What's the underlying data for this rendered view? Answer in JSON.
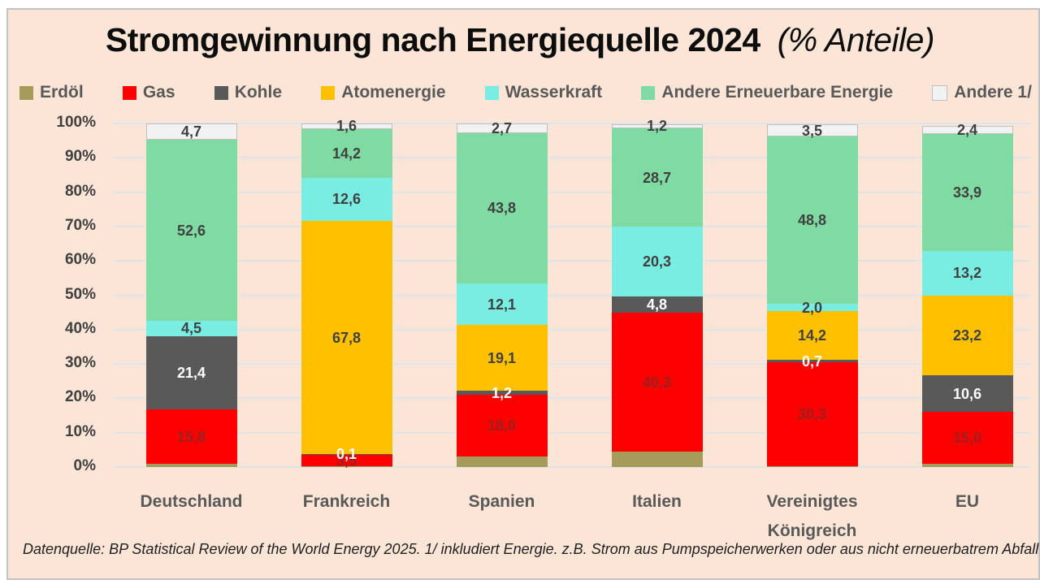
{
  "title": {
    "main": "Stromgewinnung nach Energiequelle 2024",
    "suffix": "(% Anteile)"
  },
  "footer": "Datenquelle: BP Statistical Review of the World Energy 2025. 1/ inkludiert Energie. z.B. Strom aus Pumpspeicherwerken oder aus nicht erneuerbatrem Abfall",
  "colors": {
    "panel_background": "#FBE5D6",
    "panel_border": "#C2C2C2",
    "gridline": "#DFE4E9",
    "title_text": "#0D0D0D",
    "axis_text": "#404040",
    "category_text": "#595959",
    "legend_text": "#595959"
  },
  "y_axis": {
    "ticks": [
      "100%",
      "90%",
      "80%",
      "70%",
      "60%",
      "50%",
      "40%",
      "30%",
      "20%",
      "10%",
      "0%"
    ]
  },
  "chart_data": {
    "type": "bar",
    "stacked": true,
    "grid": true,
    "ylim": [
      0,
      100
    ],
    "legend_position": "top",
    "categories": [
      "Deutschland",
      "Frankreich",
      "Spanien",
      "Italien",
      "Vereinigtes Königreich",
      "EU"
    ],
    "series": [
      {
        "name": "Erdöl",
        "color": "#A79B5B",
        "label_color": "#404040",
        "values": [
          0.9,
          0.2,
          3.0,
          4.5,
          0.2,
          1.0
        ],
        "labels": [
          "",
          "",
          "",
          "",
          "",
          ""
        ]
      },
      {
        "name": "Gas",
        "color": "#FE0000",
        "label_color": "#9B2020",
        "values": [
          15.8,
          3.5,
          18.0,
          40.3,
          30.3,
          15.0
        ],
        "labels": [
          "15,8",
          "3,5",
          "18,0",
          "40,3",
          "30,3",
          "15,0"
        ]
      },
      {
        "name": "Kohle",
        "color": "#595959",
        "label_color": "#FFFFFF",
        "values": [
          21.4,
          0.1,
          1.2,
          4.8,
          0.7,
          10.6
        ],
        "labels": [
          "21,4",
          "0,1",
          "1,2",
          "4,8",
          "0,7",
          "10,6"
        ]
      },
      {
        "name": "Atomenergie",
        "color": "#FFC000",
        "label_color": "#404040",
        "values": [
          0,
          67.8,
          19.1,
          0,
          14.2,
          23.2
        ],
        "labels": [
          "",
          "67,8",
          "19,1",
          "",
          "14,2",
          "23,2"
        ]
      },
      {
        "name": "Wasserkraft",
        "color": "#79EDE2",
        "label_color": "#404040",
        "values": [
          4.5,
          12.6,
          12.1,
          20.3,
          2.0,
          13.2
        ],
        "labels": [
          "4,5",
          "12,6",
          "12,1",
          "20,3",
          "2,0",
          "13,2"
        ]
      },
      {
        "name": "Andere Erneuerbare Energie",
        "color": "#7FDBA2",
        "label_color": "#404040",
        "values": [
          52.6,
          14.2,
          43.8,
          28.7,
          48.8,
          33.9
        ],
        "labels": [
          "52,6",
          "14,2",
          "43,8",
          "28,7",
          "48,8",
          "33,9"
        ]
      },
      {
        "name": "Andere 1/",
        "color": "#F2F2F2",
        "label_color": "#404040",
        "bordered": true,
        "values": [
          4.7,
          1.6,
          2.7,
          1.2,
          3.5,
          2.4
        ],
        "labels": [
          "4,7",
          "1,6",
          "2,7",
          "1,2",
          "3,5",
          "2,4"
        ]
      }
    ]
  }
}
